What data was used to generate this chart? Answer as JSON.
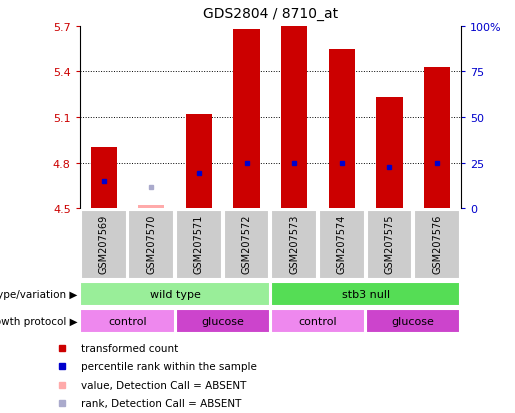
{
  "title": "GDS2804 / 8710_at",
  "samples": [
    "GSM207569",
    "GSM207570",
    "GSM207571",
    "GSM207572",
    "GSM207573",
    "GSM207574",
    "GSM207575",
    "GSM207576"
  ],
  "bar_values": [
    4.9,
    null,
    5.12,
    5.68,
    5.7,
    5.55,
    5.23,
    5.43
  ],
  "bar_base": 4.5,
  "blue_marker_values": [
    4.68,
    null,
    4.73,
    4.8,
    4.8,
    4.8,
    4.77,
    4.8
  ],
  "absent_value": [
    null,
    4.52,
    null,
    null,
    null,
    null,
    null,
    null
  ],
  "absent_rank": [
    null,
    4.64,
    null,
    null,
    null,
    null,
    null,
    null
  ],
  "ylim": [
    4.5,
    5.7
  ],
  "yticks": [
    4.5,
    4.8,
    5.1,
    5.4,
    5.7
  ],
  "right_yticks": [
    0,
    25,
    50,
    75,
    100
  ],
  "right_ylim": [
    0,
    100
  ],
  "bar_color": "#cc0000",
  "blue_marker_color": "#0000cc",
  "absent_bar_color": "#ffaaaa",
  "absent_rank_color": "#aaaacc",
  "plot_bg_color": "#ffffff",
  "tick_area_color": "#cccccc",
  "genotype_wildtype_color": "#99ee99",
  "genotype_stb3_color": "#55dd55",
  "growth_control_color": "#ee88ee",
  "growth_glucose_color": "#cc44cc",
  "tick_label_color": "#cc0000",
  "right_tick_color": "#0000cc",
  "legend_items": [
    {
      "color": "#cc0000",
      "label": "transformed count"
    },
    {
      "color": "#0000cc",
      "label": "percentile rank within the sample"
    },
    {
      "color": "#ffaaaa",
      "label": "value, Detection Call = ABSENT"
    },
    {
      "color": "#aaaacc",
      "label": "rank, Detection Call = ABSENT"
    }
  ],
  "genotype_groups": [
    {
      "label": "wild type",
      "start": 0,
      "end": 3,
      "color": "#99ee99"
    },
    {
      "label": "stb3 null",
      "start": 4,
      "end": 7,
      "color": "#55dd55"
    }
  ],
  "growth_groups": [
    {
      "label": "control",
      "start": 0,
      "end": 1,
      "color": "#ee88ee"
    },
    {
      "label": "glucose",
      "start": 2,
      "end": 3,
      "color": "#cc44cc"
    },
    {
      "label": "control",
      "start": 4,
      "end": 5,
      "color": "#ee88ee"
    },
    {
      "label": "glucose",
      "start": 6,
      "end": 7,
      "color": "#cc44cc"
    }
  ]
}
